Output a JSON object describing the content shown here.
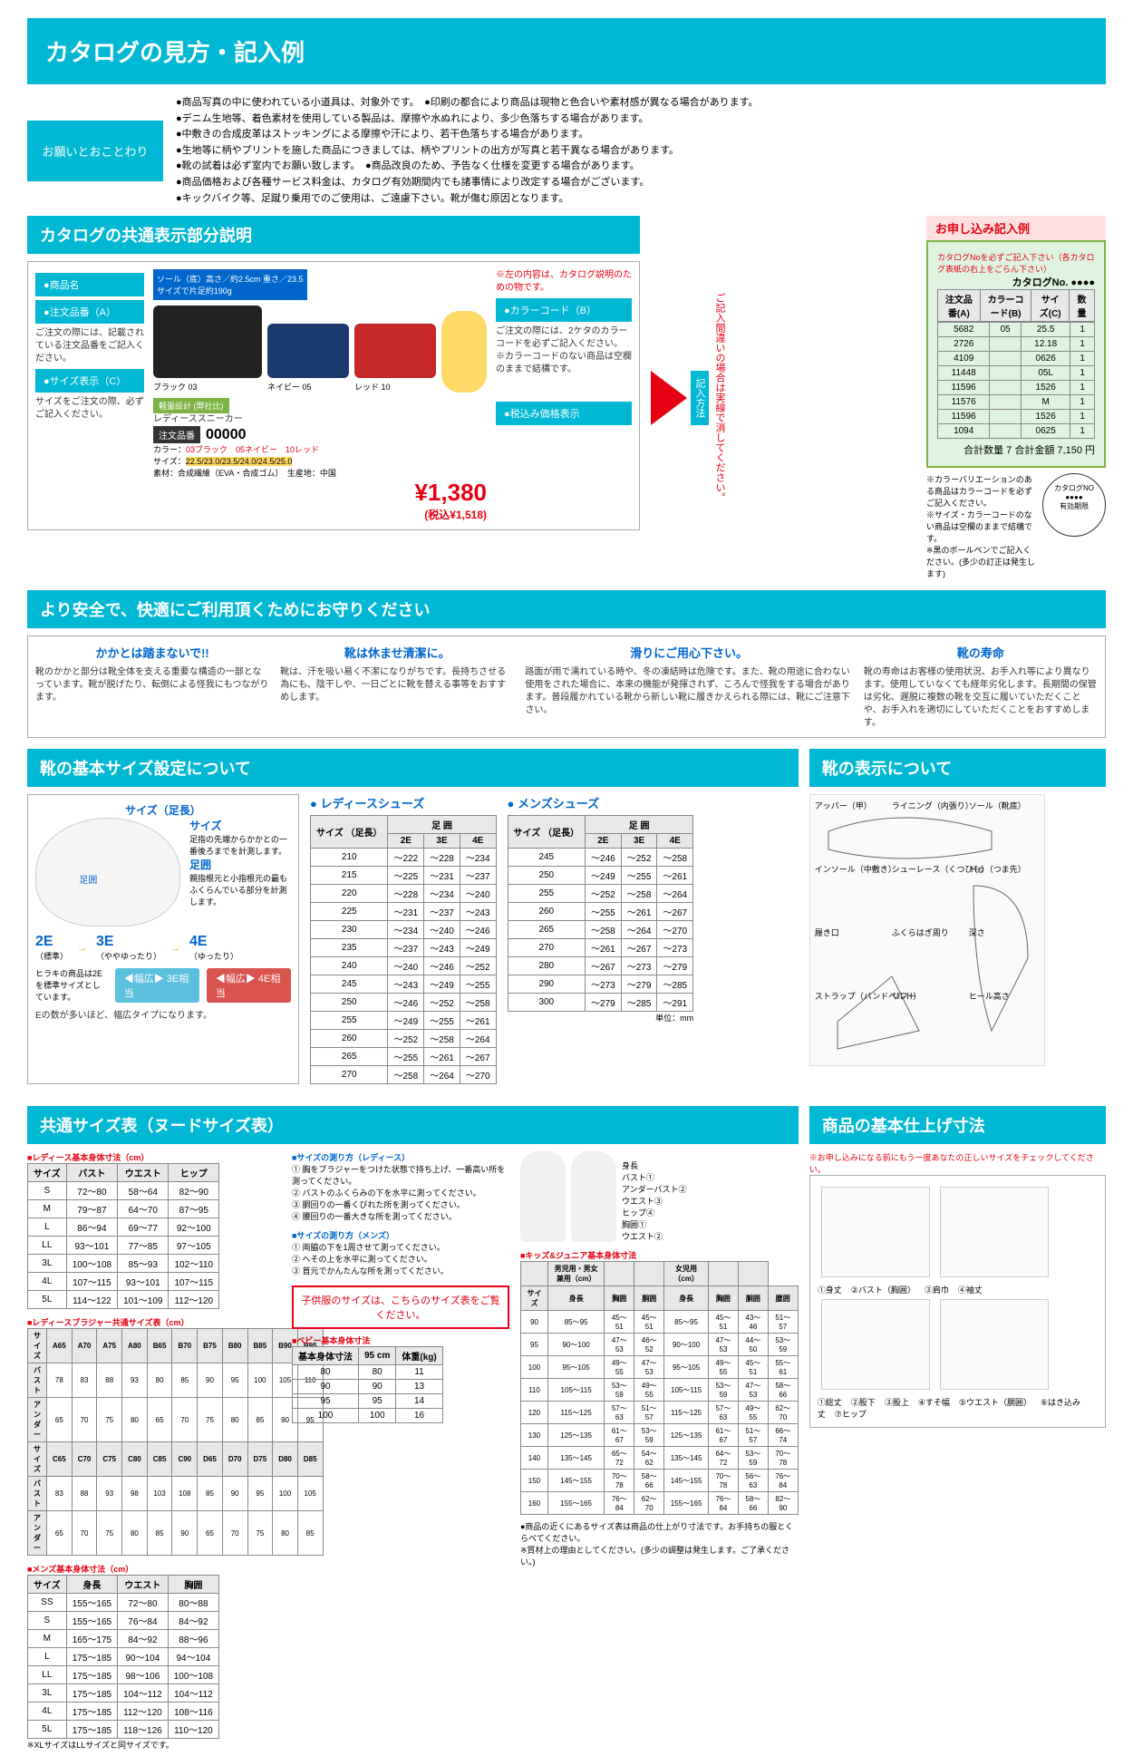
{
  "page_number": "213",
  "main_title": "カタログの見方・記入例",
  "notice": {
    "label": "お願いとおことわり",
    "items": [
      "●商品写真の中に使われている小道具は、対象外です。　●印刷の都合により商品は現物と色合いや素材感が異なる場合があります。",
      "●デニム生地等、着色素材を使用している製品は、摩擦や水ぬれにより、多少色落ちする場合があります。",
      "●中敷きの合成皮革はストッキングによる摩擦や汗により、若干色落ちする場合があります。",
      "●生地等に柄やプリントを施した商品につきましては、柄やプリントの出方が写真と若干異なる場合があります。",
      "●靴の試着は必ず室内でお願い致します。　●商品改良のため、予告なく仕様を変更する場合があります。",
      "●商品価格および各種サービス料金は、カタログ有効期間内でも諸事情により改定する場合がございます。",
      "●キックバイク等、足蹴り乗用でのご使用は、ご遠慮下さい。靴が傷む原因となります。"
    ]
  },
  "catalog_section": {
    "title": "カタログの共通表示部分説明",
    "sole_info": "ソール（底）高さ／約2.5cm\n重さ／23.5 サイズで片足約190g",
    "design_badge": "軽量設計\n(弊社比)",
    "left_note": "※左の内容は、カタログ説明のための物です。",
    "labels": {
      "product_name": "●商品名",
      "order_code": "●注文品番（A）",
      "order_code_note": "ご注文の際には、記載されている注文品番をご記入ください。",
      "size_display": "●サイズ表示（C）",
      "size_display_note": "サイズをご注文の際、必ずご記入ください。",
      "color_code": "●カラーコード（B）",
      "color_code_note": "ご注文の際には、2ケタのカラーコードを必ずご記入ください。\n※カラーコードのない商品は空欄のままで結構です。",
      "price_label": "●税込み価格表示"
    },
    "product": {
      "name": "レディーススニーカー",
      "code_label": "注文品番",
      "code": "00000",
      "colors_label": "カラー：",
      "colors": "03ブラック　05ネイビー　10レッド",
      "color_tags": {
        "black": "ブラック\n03",
        "navy": "ネイビー\n05",
        "red": "レッド\n10"
      },
      "size_label": "サイズ：",
      "sizes": "22.5/23.0/23.5/24.0/24.5/25.0",
      "material": "素材：合成繊維（EVA・合成ゴム）　生産地：中国",
      "price": "¥1,380",
      "price_tax": "(税込¥1,518)"
    }
  },
  "order_example": {
    "title": "お申し込み記入例",
    "catalog_no_label": "カタログNoを必ずご記入下さい（各カタログ表紙の右上をごらん下さい）",
    "catalog_no": "カタログNo. ●●●●",
    "vert_label": "記入方法",
    "vert_red_note": "ご記入間違いの場合は実線で消してください。",
    "headers": [
      "注文品番(A)",
      "カラーコード(B)",
      "サイズ(C)",
      "数量"
    ],
    "rows": [
      [
        "5682",
        "05",
        "25.5",
        "1"
      ],
      [
        "2726",
        "",
        "12.18",
        "1"
      ],
      [
        "4109",
        "",
        "0626",
        "1"
      ],
      [
        "11448",
        "",
        "05L",
        "1"
      ],
      [
        "11596",
        "",
        "1526",
        "1"
      ],
      [
        "11576",
        "",
        "M",
        "1"
      ],
      [
        "11596",
        "",
        "1526",
        "1"
      ],
      [
        "1094",
        "",
        "0625",
        "1"
      ]
    ],
    "total": "合計数量 7  合計金額 7,150 円",
    "footnote": "※カラーバリエーションのある商品はカラーコードを必ずご記入ください。\n※サイズ・カラーコードのない商品は空欄のままで結構です。\n※黒のボールペンでご記入ください。(多少の訂正は発生します)",
    "stamp": "カタログNO\n●●●●\n有効期限"
  },
  "safety": {
    "title": "より安全で、快適にご利用頂くためにお守りください",
    "cols": [
      {
        "head": "かかとは踏まないで!!",
        "body": "靴のかかと部分は靴全体を支える重要な構造の一部となっています。靴が脱げたり、転倒による怪我にもつながります。"
      },
      {
        "head": "靴は休ませ清潔に。",
        "body": "靴は、汗を吸い易く不潔になりがちです。長持ちさせる為にも、陰干しや、一日ごとに靴を替える事等をおすすめします。"
      },
      {
        "head": "滑りにご用心下さい。",
        "body": "路面が雨で濡れている時や、冬の凍結時は危険です。また、靴の用途に合わない使用をされた場合に、本来の機能が発揮されず、ころんで怪我をする場合があります。普段履かれている靴から新しい靴に履きかえられる際には、靴にご注意下さい。"
      },
      {
        "head": "靴の寿命",
        "body": "靴の寿命はお客様の使用状況、お手入れ等により異なります。使用していなくても経年劣化します。長期間の保管は劣化、遅脱に複数の靴を交互に履いていただくことや、お手入れを適切にしていただくことをおすすめします。"
      }
    ]
  },
  "size_setting": {
    "title": "靴の基本サイズ設定について",
    "foot_len_label": "サイズ（足長）",
    "size_head": "サイズ",
    "size_desc": "足指の先端からかかとの一番後ろまでを計測します。",
    "width_head": "足囲",
    "width_label_diagram": "足囲",
    "width_desc": "親指根元と小指根元の最もふくらんでいる部分を計測します。",
    "widths": {
      "e2": "2E",
      "e2_sub": "（標準）",
      "e3": "3E",
      "e3_sub": "（ややゆったり）",
      "e4": "4E",
      "e4_sub": "（ゆったり）"
    },
    "width_note": "ヒラキの商品は2Eを標準サイズとしています。",
    "badge3e": "◀幅広▶\n3E相当",
    "badge4e": "◀幅広▶\n4E相当",
    "bottom_note": "Eの数が多いほど、幅広タイプになります。",
    "ladies_title": "● レディースシューズ",
    "mens_title": "● メンズシューズ",
    "table_head": {
      "size": "サイズ\n（足長）",
      "width": "足 囲",
      "e2": "2E",
      "e3": "3E",
      "e4": "4E"
    },
    "ladies_rows": [
      [
        "210",
        "〜222",
        "〜228",
        "〜234"
      ],
      [
        "215",
        "〜225",
        "〜231",
        "〜237"
      ],
      [
        "220",
        "〜228",
        "〜234",
        "〜240"
      ],
      [
        "225",
        "〜231",
        "〜237",
        "〜243"
      ],
      [
        "230",
        "〜234",
        "〜240",
        "〜246"
      ],
      [
        "235",
        "〜237",
        "〜243",
        "〜249"
      ],
      [
        "240",
        "〜240",
        "〜246",
        "〜252"
      ],
      [
        "245",
        "〜243",
        "〜249",
        "〜255"
      ],
      [
        "250",
        "〜246",
        "〜252",
        "〜258"
      ],
      [
        "255",
        "〜249",
        "〜255",
        "〜261"
      ],
      [
        "260",
        "〜252",
        "〜258",
        "〜264"
      ],
      [
        "265",
        "〜255",
        "〜261",
        "〜267"
      ],
      [
        "270",
        "〜258",
        "〜264",
        "〜270"
      ]
    ],
    "mens_rows": [
      [
        "245",
        "〜246",
        "〜252",
        "〜258"
      ],
      [
        "250",
        "〜249",
        "〜255",
        "〜261"
      ],
      [
        "255",
        "〜252",
        "〜258",
        "〜264"
      ],
      [
        "260",
        "〜255",
        "〜261",
        "〜267"
      ],
      [
        "265",
        "〜258",
        "〜264",
        "〜270"
      ],
      [
        "270",
        "〜261",
        "〜267",
        "〜273"
      ],
      [
        "280",
        "〜267",
        "〜273",
        "〜279"
      ],
      [
        "290",
        "〜273",
        "〜279",
        "〜285"
      ],
      [
        "300",
        "〜279",
        "〜285",
        "〜291"
      ]
    ],
    "unit_note": "単位：mm"
  },
  "shoe_parts": {
    "title": "靴の表示について",
    "labels": [
      "アッパー（甲）",
      "ライニング（内張り）",
      "ソール（靴底）",
      "インソール（中敷き）",
      "シューレース（くつひも）",
      "トゥ（つま先）",
      "履き口",
      "ふくらはぎ周り",
      "深さ",
      "ストラップ（バンドベルト）",
      "リフト",
      "ヒール高さ"
    ]
  },
  "common_size": {
    "title": "共通サイズ表（ヌードサイズ表）",
    "ladies_body_title": "■レディース基本身体寸法（cm）",
    "ladies_body_head": [
      "サイズ",
      "バスト",
      "ウエスト",
      "ヒップ"
    ],
    "ladies_body_rows": [
      [
        "S",
        "72〜80",
        "58〜64",
        "82〜90"
      ],
      [
        "M",
        "79〜87",
        "64〜70",
        "87〜95"
      ],
      [
        "L",
        "86〜94",
        "69〜77",
        "92〜100"
      ],
      [
        "LL",
        "93〜101",
        "77〜85",
        "97〜105"
      ],
      [
        "3L",
        "100〜108",
        "85〜93",
        "102〜110"
      ],
      [
        "4L",
        "107〜115",
        "93〜101",
        "107〜115"
      ],
      [
        "5L",
        "114〜122",
        "101〜109",
        "112〜120"
      ]
    ],
    "bra_title": "■レディースブラジャー共通サイズ表（cm）",
    "bra_head_cup": [
      "サイズ",
      "A65",
      "A70",
      "A75",
      "A80",
      "B65",
      "B70",
      "B75",
      "B80",
      "B85",
      "B90",
      "B95"
    ],
    "bra_bust_label": "バスト",
    "bra_bust_a": [
      "78",
      "83",
      "88",
      "93",
      "80",
      "85",
      "90",
      "95",
      "100",
      "105",
      "110"
    ],
    "bra_under_label": "アンダー",
    "bra_under_a": [
      "65",
      "70",
      "75",
      "80",
      "65",
      "70",
      "75",
      "80",
      "85",
      "90",
      "95"
    ],
    "bra_head_cup2": [
      "サイズ",
      "C65",
      "C70",
      "C75",
      "C80",
      "C85",
      "C90",
      "D65",
      "D70",
      "D75",
      "D80",
      "D85"
    ],
    "bra_bust_c": [
      "83",
      "88",
      "93",
      "98",
      "103",
      "108",
      "85",
      "90",
      "95",
      "100",
      "105"
    ],
    "bra_under_c": [
      "65",
      "70",
      "75",
      "80",
      "85",
      "90",
      "65",
      "70",
      "75",
      "80",
      "85"
    ],
    "mens_body_title": "■メンズ基本身体寸法（cm）",
    "mens_body_head": [
      "サイズ",
      "身長",
      "ウエスト",
      "胸囲"
    ],
    "mens_body_rows": [
      [
        "SS",
        "155〜165",
        "72〜80",
        "80〜88"
      ],
      [
        "S",
        "155〜165",
        "76〜84",
        "84〜92"
      ],
      [
        "M",
        "165〜175",
        "84〜92",
        "88〜96"
      ],
      [
        "L",
        "175〜185",
        "90〜104",
        "94〜104"
      ],
      [
        "LL",
        "175〜185",
        "98〜106",
        "100〜108"
      ],
      [
        "3L",
        "175〜185",
        "104〜112",
        "104〜112"
      ],
      [
        "4L",
        "175〜185",
        "112〜120",
        "108〜116"
      ],
      [
        "5L",
        "175〜185",
        "118〜126",
        "110〜120"
      ]
    ],
    "mens_note": "※XLサイズはLLサイズと同サイズです。",
    "measure_ladies_title": "■サイズの測り方（レディース）",
    "measure_ladies": [
      "① 胸をブラジャーをつけた状態で持ち上げ、一番高い所を測ってください。",
      "② バストのふくらみの下を水平に測ってください。",
      "③ 胴回りの一番くびれた所を測ってください。",
      "④ 腰回りの一番大きな所を測ってください。"
    ],
    "measure_mens_title": "■サイズの測り方（メンズ）",
    "measure_mens": [
      "① 両脇の下を1周させて測ってください。",
      "② へその上を水平に測ってください。",
      "③ 首元でかんたんな所を測ってください。"
    ],
    "body_labels": [
      "身長",
      "バスト①",
      "アンダーバスト②",
      "ウエスト③",
      "ヒップ④",
      "胸囲①",
      "ウエスト②"
    ],
    "kids_note": "子供服のサイズは、こちらのサイズ表をご覧ください。",
    "kids_title": "■キッズ&ジュニア基本身体寸法",
    "kids_head_top": [
      "",
      "男児用・男女兼用（cm）",
      "",
      "",
      "女児用（cm）",
      "",
      ""
    ],
    "kids_head": [
      "サイズ",
      "身長",
      "胸囲",
      "胴囲",
      "身長",
      "胸囲",
      "胴囲",
      "腰囲"
    ],
    "kids_rows": [
      [
        "90",
        "85〜95",
        "45〜51",
        "45〜51",
        "85〜95",
        "45〜51",
        "43〜46",
        "51〜57"
      ],
      [
        "95",
        "90〜100",
        "47〜53",
        "46〜52",
        "90〜100",
        "47〜53",
        "44〜50",
        "53〜59"
      ],
      [
        "100",
        "95〜105",
        "49〜55",
        "47〜53",
        "95〜105",
        "49〜55",
        "45〜51",
        "55〜61"
      ],
      [
        "110",
        "105〜115",
        "53〜59",
        "49〜55",
        "105〜115",
        "53〜59",
        "47〜53",
        "58〜66"
      ],
      [
        "120",
        "115〜125",
        "57〜63",
        "51〜57",
        "115〜125",
        "57〜63",
        "49〜55",
        "62〜70"
      ],
      [
        "130",
        "125〜135",
        "61〜67",
        "53〜59",
        "125〜135",
        "61〜67",
        "51〜57",
        "66〜74"
      ],
      [
        "140",
        "135〜145",
        "65〜72",
        "54〜62",
        "135〜145",
        "64〜72",
        "53〜59",
        "70〜78"
      ],
      [
        "150",
        "145〜155",
        "70〜78",
        "58〜66",
        "145〜155",
        "70〜78",
        "56〜63",
        "76〜84"
      ],
      [
        "160",
        "155〜165",
        "76〜84",
        "62〜70",
        "155〜165",
        "76〜84",
        "58〜66",
        "82〜90"
      ]
    ],
    "baby_title": "■ベビー基本身体寸法",
    "baby_head": [
      "基本身体寸法",
      "95 cm",
      "体重(kg)"
    ],
    "baby_rows": [
      [
        "80",
        "80",
        "11"
      ],
      [
        "90",
        "90",
        "13"
      ],
      [
        "95",
        "95",
        "14"
      ],
      [
        "100",
        "100",
        "16"
      ]
    ],
    "bottom_note": "●商品の近くにあるサイズ表は商品の仕上がり寸法です。お手持ちの服とくらべてください。\n※質材上の理由としてください。(多少の調整は発生します。ご了承ください。)"
  },
  "finish_size": {
    "title": "商品の基本仕上げ寸法",
    "note": "※お申し込みになる前にもう一度あなたの正しいサイズをチェックしてください。",
    "legend1": [
      "①身丈",
      "②バスト（胸囲）",
      "③肩巾",
      "④袖丈"
    ],
    "legend2": [
      "①総丈",
      "②股下",
      "③股上",
      "④すそ幅",
      "⑤ウエスト（胴囲）",
      "⑥はき込み丈",
      "⑦ヒップ"
    ]
  }
}
